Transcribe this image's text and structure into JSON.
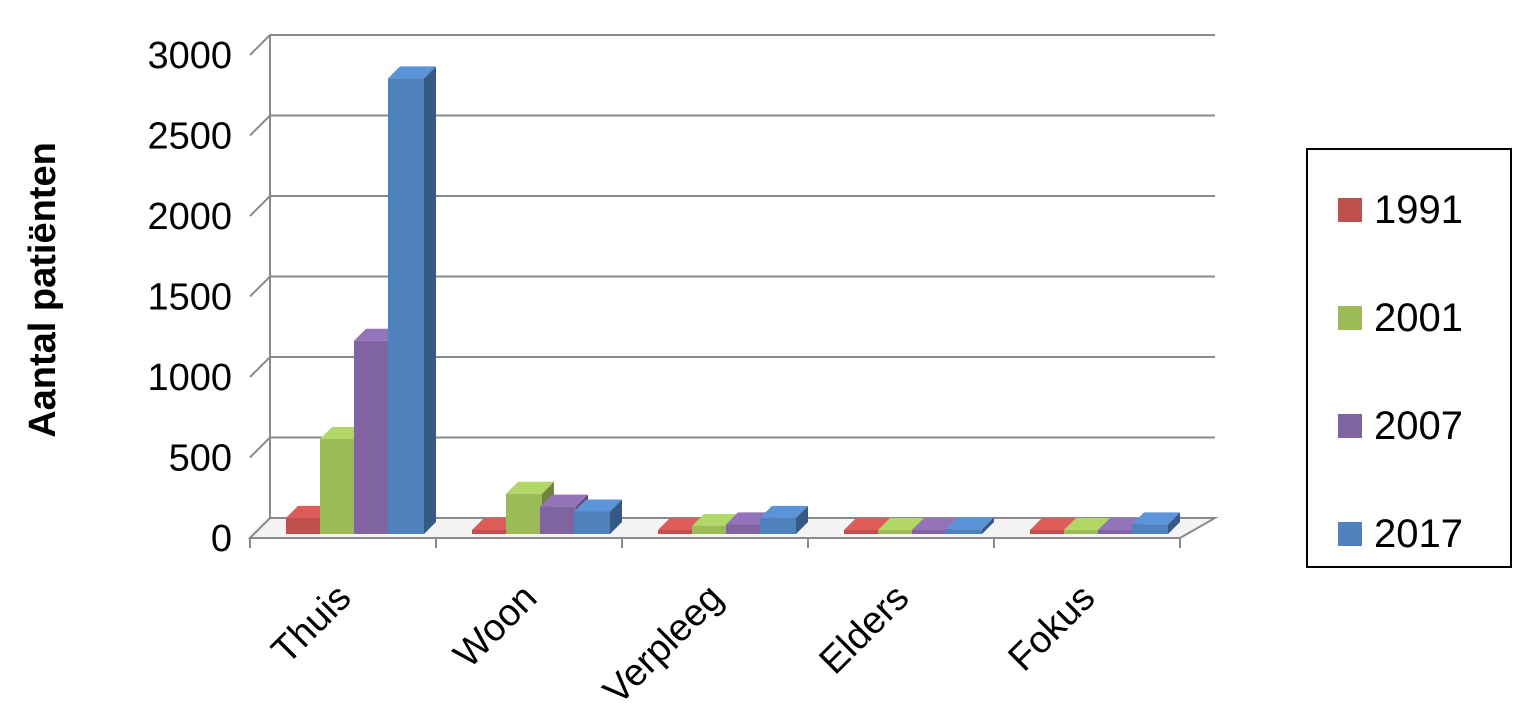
{
  "chart_data": {
    "type": "bar",
    "style": "3d-clustered-column",
    "ylabel": "Aantal patiënten",
    "xlabel": "",
    "ylim": [
      0,
      3000
    ],
    "yticks": [
      "0",
      "500",
      "1000",
      "1500",
      "2000",
      "2500",
      "3000"
    ],
    "grid": true,
    "legend_position": "right",
    "categories": [
      "Thuis",
      "Woon",
      "Verpleeg",
      "Elders",
      "Fokus"
    ],
    "series": [
      {
        "name": "1991",
        "color": "#c0504d",
        "values": [
          100,
          0,
          0,
          0,
          0
        ]
      },
      {
        "name": "2001",
        "color": "#9bbb59",
        "values": [
          590,
          250,
          50,
          10,
          0
        ]
      },
      {
        "name": "2007",
        "color": "#8064a2",
        "values": [
          1200,
          170,
          60,
          20,
          0
        ]
      },
      {
        "name": "2017",
        "color": "#4f81bd",
        "values": [
          2830,
          140,
          100,
          30,
          60
        ]
      }
    ]
  }
}
